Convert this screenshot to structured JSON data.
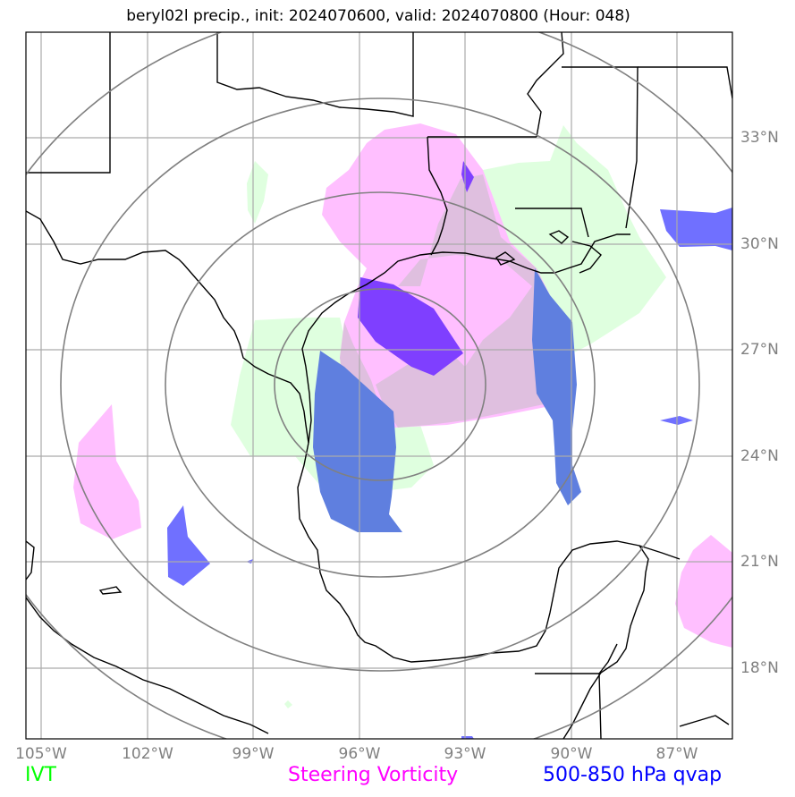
{
  "title": "beryl02l precip., init: 2024070600, valid: 2024070800 (Hour: 048)",
  "x_ticks": [
    "105°W",
    "102°W",
    "99°W",
    "96°W",
    "93°W",
    "90°W",
    "87°W"
  ],
  "y_ticks": [
    "33°N",
    "30°N",
    "27°N",
    "24°N",
    "21°N",
    "18°N"
  ],
  "legend": {
    "ivt": {
      "label": "IVT",
      "color": "#00ff00"
    },
    "vorticity": {
      "label": "Steering Vorticity",
      "color": "#ff00ff"
    },
    "qvap": {
      "label": "500-850 hPa qvap",
      "color": "#0000ff"
    }
  },
  "fill_colors": {
    "ivt": "#dfffdf",
    "vorticity": "#ffbfff",
    "overlap": "#dfbfdf",
    "qvap": "#7070ff",
    "qvap_dark": "#7f3fff",
    "qvap_mid": "#5f7fdf"
  },
  "map_extent": {
    "lon": [
      -105.5,
      -85.5
    ],
    "lat": [
      15.5,
      35.5
    ]
  },
  "range_ring_center": {
    "lon": -95.7,
    "lat": 26.1
  }
}
